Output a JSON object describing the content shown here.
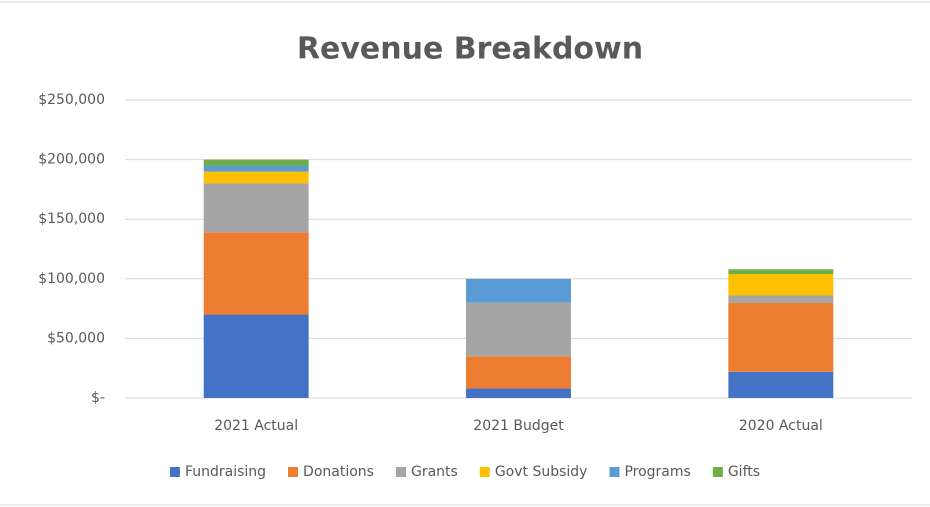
{
  "chart_data": {
    "type": "stacked_bar",
    "title": "Revenue Breakdown",
    "categories": [
      "2021 Actual",
      "2021 Budget",
      "2020 Actual"
    ],
    "series": [
      {
        "name": "Fundraising",
        "color": "#4472c4",
        "values": [
          70000,
          8000,
          22000
        ]
      },
      {
        "name": "Donations",
        "color": "#ed7d31",
        "values": [
          69000,
          27000,
          58000
        ]
      },
      {
        "name": "Grants",
        "color": "#a5a5a5",
        "values": [
          41000,
          45000,
          6000
        ]
      },
      {
        "name": "Govt Subsidy",
        "color": "#ffc000",
        "values": [
          10000,
          0,
          18000
        ]
      },
      {
        "name": "Programs",
        "color": "#5b9bd5",
        "values": [
          5000,
          20000,
          0
        ]
      },
      {
        "name": "Gifts",
        "color": "#70ad47",
        "values": [
          5000,
          0,
          4000
        ]
      }
    ],
    "ylim": [
      0,
      250000
    ],
    "yticks": [
      {
        "value": 0,
        "label": "$-"
      },
      {
        "value": 50000,
        "label": "$50,000"
      },
      {
        "value": 100000,
        "label": "$100,000"
      },
      {
        "value": 150000,
        "label": "$150,000"
      },
      {
        "value": 200000,
        "label": "$200,000"
      },
      {
        "value": 250000,
        "label": "$250,000"
      }
    ],
    "grid": true,
    "legend": "bottom"
  }
}
